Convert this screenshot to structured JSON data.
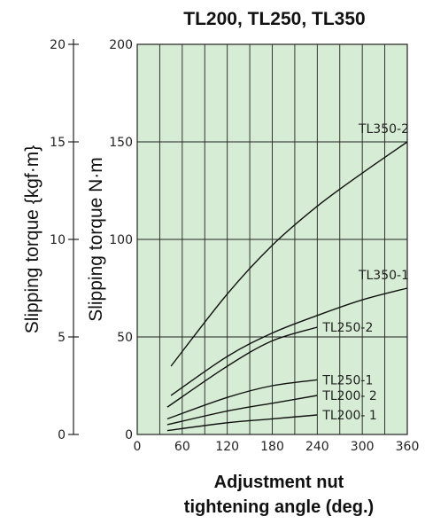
{
  "chart_data": {
    "type": "line",
    "title": "TL200, TL250, TL350",
    "xlabel_line1": "Adjustment nut",
    "xlabel_line2": "tightening angle (deg.)",
    "ylabel_left": "Slipping torque {kgf·m}",
    "ylabel_right": "Slipping torque N·m",
    "xlim": [
      0,
      360
    ],
    "ylim": [
      0,
      200
    ],
    "ylim_kgfm": [
      0,
      20
    ],
    "x_ticks": [
      "0",
      "60",
      "120",
      "180",
      "240",
      "300",
      "360"
    ],
    "y_ticks": [
      "0",
      "50",
      "100",
      "150",
      "200"
    ],
    "y_ticks_kgfm": [
      "0",
      "5",
      "10",
      "15",
      "20"
    ],
    "grid": true,
    "background_color": "#d6ecd4",
    "line_color": "#111111",
    "series": [
      {
        "name": "TL350-2",
        "x": [
          45,
          120,
          180,
          240,
          300,
          360
        ],
        "y": [
          35,
          72,
          97,
          117,
          134,
          150
        ]
      },
      {
        "name": "TL350-1",
        "x": [
          45,
          120,
          180,
          240,
          300,
          360
        ],
        "y": [
          20,
          40,
          52,
          61,
          69,
          75
        ]
      },
      {
        "name": "TL250-2",
        "x": [
          40,
          120,
          180,
          240
        ],
        "y": [
          14,
          35,
          48,
          55
        ]
      },
      {
        "name": "TL250-1",
        "x": [
          40,
          120,
          180,
          240
        ],
        "y": [
          8,
          19,
          25,
          28
        ]
      },
      {
        "name": "TL200- 2",
        "x": [
          40,
          120,
          180,
          240
        ],
        "y": [
          5,
          12,
          16,
          20
        ]
      },
      {
        "name": "TL200- 1",
        "x": [
          40,
          120,
          180,
          240
        ],
        "y": [
          2,
          6,
          8,
          10
        ]
      }
    ]
  }
}
